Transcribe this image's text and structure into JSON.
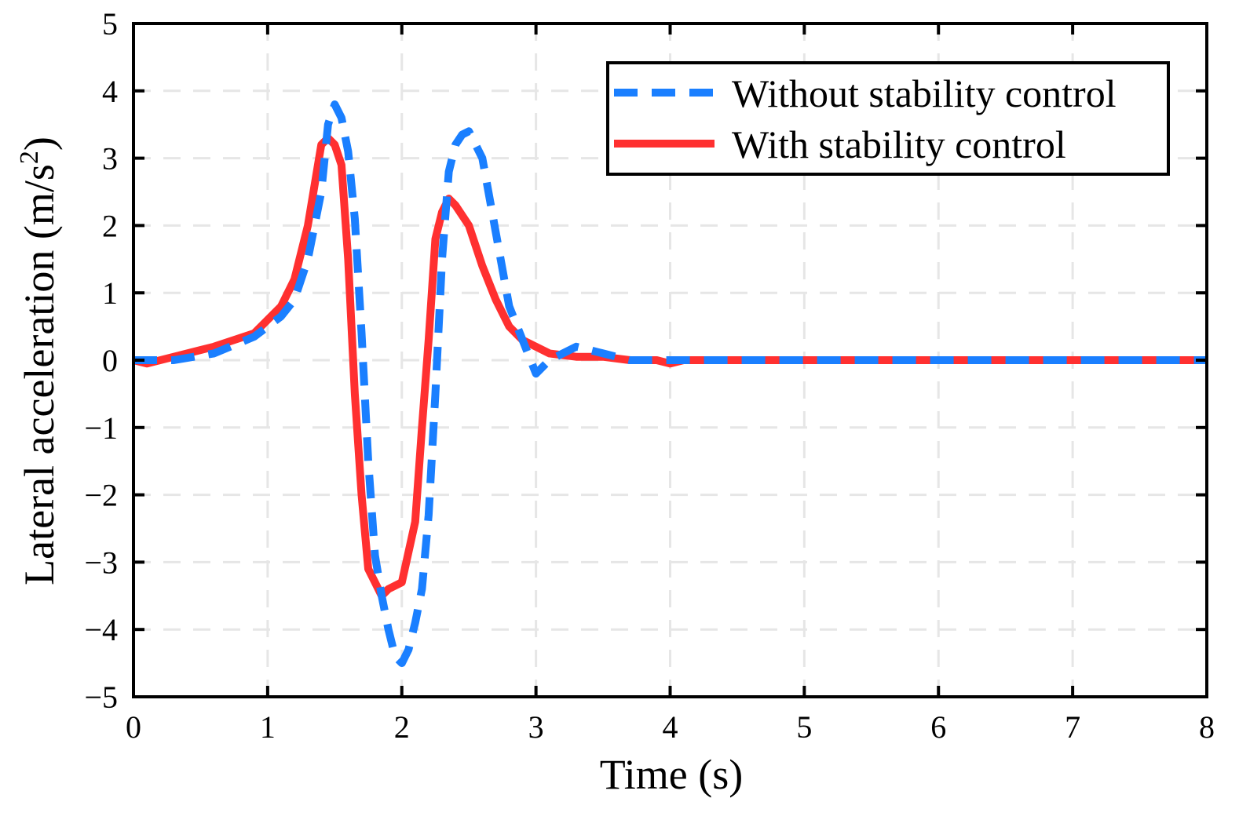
{
  "chart_data": {
    "type": "line",
    "title": "",
    "xlabel": "Time (s)",
    "ylabel": "Lateral acceleration (m/s",
    "ylabel_superscript": "2",
    "ylabel_suffix": ")",
    "xlim": [
      0,
      8
    ],
    "ylim": [
      -5,
      5
    ],
    "x_ticks": [
      0,
      1,
      2,
      3,
      4,
      5,
      6,
      7,
      8
    ],
    "y_ticks": [
      5,
      4,
      3,
      2,
      1,
      0,
      -1,
      -2,
      -3,
      -4,
      -5
    ],
    "x_tick_labels": [
      "0",
      "1",
      "2",
      "3",
      "4",
      "5",
      "6",
      "7",
      "8"
    ],
    "y_tick_labels": [
      "5",
      "4",
      "3",
      "2",
      "1",
      "0",
      "−1",
      "−2",
      "−3",
      "−4",
      "−5"
    ],
    "grid": true,
    "legend_position": "top-right",
    "series": [
      {
        "name": "Without stability control",
        "color": "#1a7fff",
        "style": "dashed",
        "x": [
          0,
          0.3,
          0.6,
          0.9,
          1.1,
          1.2,
          1.3,
          1.4,
          1.45,
          1.5,
          1.55,
          1.6,
          1.65,
          1.7,
          1.75,
          1.8,
          1.85,
          1.9,
          1.95,
          2.0,
          2.05,
          2.1,
          2.15,
          2.2,
          2.25,
          2.3,
          2.35,
          2.4,
          2.45,
          2.5,
          2.6,
          2.7,
          2.8,
          3.0,
          3.1,
          3.3,
          3.5,
          3.7,
          3.9,
          4.1,
          4.3,
          4.5,
          5,
          6,
          7,
          8
        ],
        "y": [
          0,
          0,
          0.1,
          0.35,
          0.65,
          0.9,
          1.5,
          2.5,
          3.5,
          3.8,
          3.6,
          3.1,
          2.1,
          0.4,
          -1.5,
          -2.9,
          -3.5,
          -4.0,
          -4.4,
          -4.5,
          -4.3,
          -3.9,
          -3.4,
          -2.3,
          -0.5,
          1.5,
          2.8,
          3.2,
          3.35,
          3.4,
          3.0,
          1.9,
          0.8,
          -0.2,
          0.0,
          0.2,
          0.1,
          0.0,
          0.0,
          0.0,
          0.0,
          0.0,
          0.0,
          0.0,
          0.0,
          0.0
        ]
      },
      {
        "name": "With stability control",
        "color": "#ff3030",
        "style": "solid",
        "x": [
          0,
          0.1,
          0.3,
          0.6,
          0.9,
          1.1,
          1.2,
          1.3,
          1.4,
          1.45,
          1.5,
          1.55,
          1.6,
          1.65,
          1.7,
          1.75,
          1.8,
          1.85,
          1.9,
          2.0,
          2.1,
          2.15,
          2.2,
          2.25,
          2.3,
          2.35,
          2.4,
          2.5,
          2.6,
          2.7,
          2.8,
          2.9,
          3.1,
          3.3,
          3.5,
          3.7,
          3.9,
          4.0,
          4.1,
          4.3,
          4.5,
          5,
          6,
          7,
          8
        ],
        "y": [
          0,
          -0.05,
          0.05,
          0.2,
          0.4,
          0.8,
          1.2,
          2.0,
          3.2,
          3.3,
          3.2,
          2.9,
          1.5,
          -0.5,
          -2.0,
          -3.1,
          -3.3,
          -3.5,
          -3.4,
          -3.3,
          -2.4,
          -1.0,
          0.3,
          1.8,
          2.2,
          2.4,
          2.3,
          2.0,
          1.4,
          0.9,
          0.5,
          0.3,
          0.1,
          0.05,
          0.05,
          0.0,
          0.0,
          -0.05,
          0.0,
          0.0,
          0.0,
          0.0,
          0.0,
          0.0,
          0.0
        ]
      }
    ]
  }
}
